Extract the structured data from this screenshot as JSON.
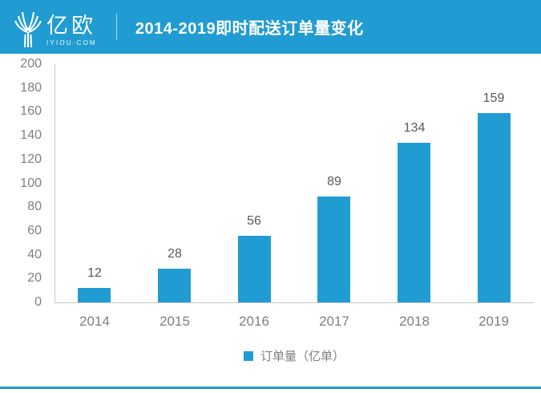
{
  "header": {
    "logo": {
      "text": "亿欧",
      "subtext": "IYIOU·COM"
    },
    "title": "2014-2019即时配送订单量变化"
  },
  "chart_data": {
    "type": "bar",
    "title": "2014-2019即时配送订单量变化",
    "categories": [
      "2014",
      "2015",
      "2016",
      "2017",
      "2018",
      "2019"
    ],
    "values": [
      12,
      28,
      56,
      89,
      134,
      159
    ],
    "legend": [
      "订单量（亿单）"
    ],
    "xlabel": "",
    "ylabel": "",
    "ylim": [
      0,
      200
    ],
    "ytick_step": 20,
    "yticks": [
      0,
      20,
      40,
      60,
      80,
      100,
      120,
      140,
      160,
      180,
      200
    ],
    "grid": false,
    "legend_position": "bottom",
    "data_labels": true
  },
  "colors": {
    "brand": "#219CD2",
    "bar": "#219CD2",
    "footer_line": "#219CD2",
    "axis": "#C8C8C8",
    "tick_text": "#7F7F7F",
    "value_text": "#595959",
    "category_text": "#7F7F7F",
    "legend_text": "#7F7F7F",
    "header_text": "#FFFFFF"
  }
}
